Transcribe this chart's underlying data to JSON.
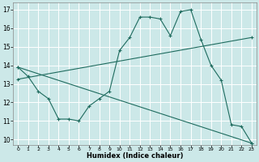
{
  "title": "",
  "xlabel": "Humidex (Indice chaleur)",
  "ylabel": "",
  "bg_color": "#cce8e8",
  "line_color": "#1e6b5e",
  "grid_color": "#ffffff",
  "xlim_min": -0.5,
  "xlim_max": 23.5,
  "ylim_min": 9.7,
  "ylim_max": 17.4,
  "xticks": [
    0,
    1,
    2,
    3,
    4,
    5,
    6,
    7,
    8,
    9,
    10,
    11,
    12,
    13,
    14,
    15,
    16,
    17,
    18,
    19,
    20,
    21,
    22,
    23
  ],
  "yticks": [
    10,
    11,
    12,
    13,
    14,
    15,
    16,
    17
  ],
  "series1_x": [
    0,
    1,
    2,
    3,
    4,
    5,
    6,
    7,
    8,
    9,
    10,
    11,
    12,
    13,
    14,
    15,
    16,
    17,
    18,
    19,
    20,
    21,
    22,
    23
  ],
  "series1_y": [
    13.9,
    13.4,
    12.6,
    12.2,
    11.1,
    11.1,
    11.0,
    11.8,
    12.2,
    12.6,
    14.8,
    15.5,
    16.6,
    16.6,
    16.5,
    15.6,
    16.9,
    17.0,
    15.4,
    14.0,
    13.2,
    10.8,
    10.7,
    9.8
  ],
  "series2_x": [
    0,
    23
  ],
  "series2_y": [
    13.25,
    15.5
  ],
  "series3_x": [
    0,
    23
  ],
  "series3_y": [
    13.9,
    9.8
  ],
  "marker": "+"
}
